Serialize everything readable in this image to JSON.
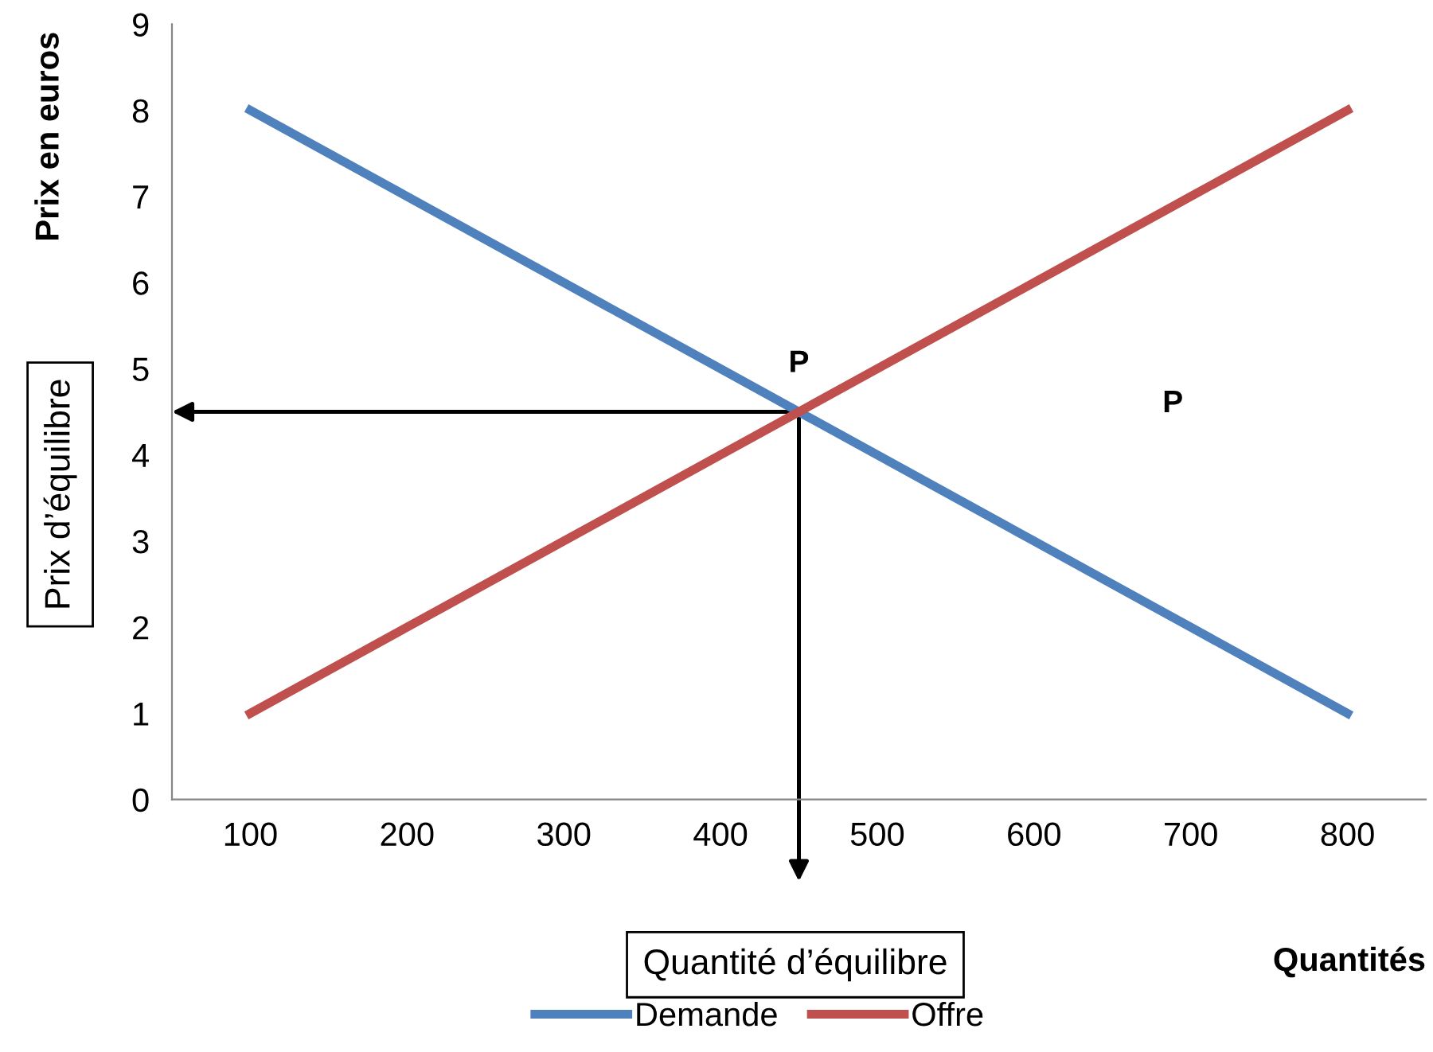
{
  "chart_data": {
    "type": "line",
    "x": [
      100,
      200,
      300,
      400,
      500,
      600,
      700,
      800
    ],
    "series": [
      {
        "name": "Demande",
        "color": "#4f81bd",
        "values": [
          8,
          7,
          6,
          5,
          4,
          3,
          2,
          1
        ]
      },
      {
        "name": "Offre",
        "color": "#c0504d",
        "values": [
          1,
          2,
          3,
          4,
          5,
          6,
          7,
          8
        ]
      }
    ],
    "xlabel": "Quantités",
    "ylabel": "Prix en euros",
    "xlim": [
      50,
      850
    ],
    "xticks": [
      100,
      200,
      300,
      400,
      500,
      600,
      700,
      800
    ],
    "ylim": [
      0,
      9
    ],
    "yticks": [
      0,
      1,
      2,
      3,
      4,
      5,
      6,
      7,
      8,
      9
    ],
    "annotations": [
      "P",
      "P",
      "Prix d’équilibre",
      "Quantité d’équilibre"
    ],
    "grid": false,
    "legend": "bottom",
    "marker": "none",
    "line_style": "solid"
  }
}
